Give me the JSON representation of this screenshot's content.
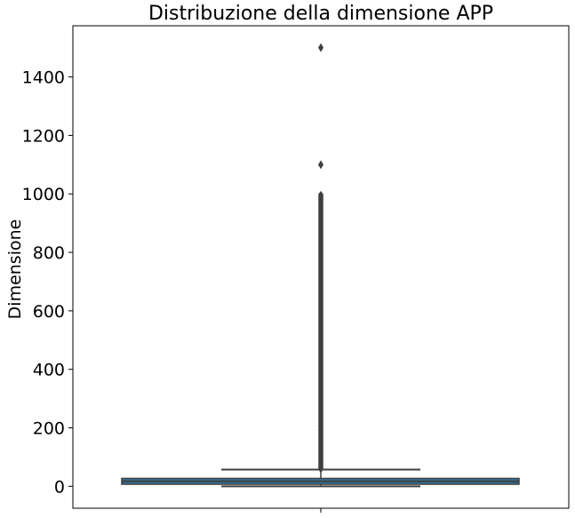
{
  "chart_data": {
    "type": "box",
    "title": "Distribuzione della dimensione APP",
    "xlabel": "",
    "ylabel": "Dimensione",
    "ylim": [
      -75,
      1575
    ],
    "yticks": [
      0,
      200,
      400,
      600,
      800,
      1000,
      1200,
      1400
    ],
    "ytick_labels": [
      "0",
      "200",
      "400",
      "600",
      "800",
      "1000",
      "1200",
      "1400"
    ],
    "box": {
      "q1": 7,
      "median": 17,
      "q3": 27,
      "whisker_low": 0,
      "whisker_high": 57
    },
    "outlier_band": [
      58,
      1000
    ],
    "outliers": [
      1100,
      1500
    ],
    "colors": {
      "box_fill": "#3274a1",
      "lines": "#3f3f3f",
      "axes": "#000000"
    }
  }
}
